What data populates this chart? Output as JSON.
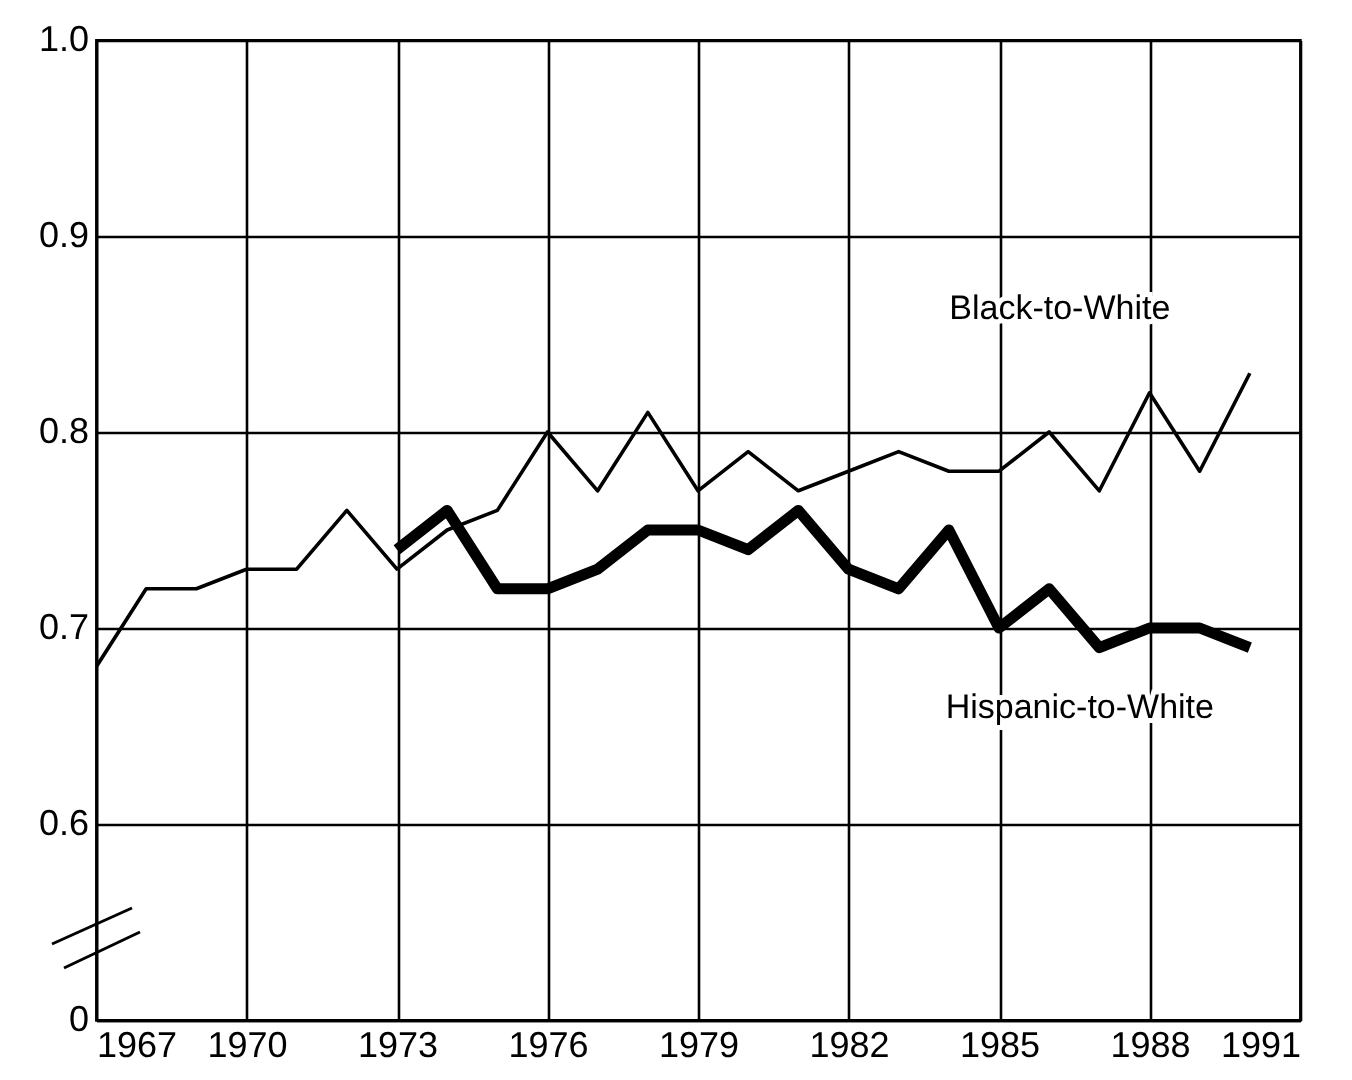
{
  "chart_data": {
    "type": "line",
    "x": [
      1967,
      1968,
      1969,
      1970,
      1971,
      1972,
      1973,
      1974,
      1975,
      1976,
      1977,
      1978,
      1979,
      1980,
      1981,
      1982,
      1983,
      1984,
      1985,
      1986,
      1987,
      1988,
      1989,
      1990
    ],
    "series": [
      {
        "name": "Black-to-White",
        "color": "#000000",
        "line_style": "solid",
        "values": [
          0.68,
          0.72,
          0.72,
          0.73,
          0.73,
          0.76,
          0.73,
          0.75,
          0.76,
          0.8,
          0.77,
          0.81,
          0.77,
          0.79,
          0.77,
          0.78,
          0.79,
          0.78,
          0.78,
          0.8,
          0.77,
          0.82,
          0.78,
          0.83
        ]
      },
      {
        "name": "Hispanic-to-White",
        "color": "#000000",
        "line_style": "solid",
        "values": [
          null,
          null,
          null,
          null,
          null,
          null,
          0.74,
          0.76,
          0.72,
          0.72,
          0.73,
          0.75,
          0.75,
          0.74,
          0.76,
          0.73,
          0.72,
          0.75,
          0.7,
          0.72,
          0.69,
          0.7,
          0.7,
          0.69
        ]
      }
    ],
    "xlim": [
      1967,
      1991
    ],
    "xticks": [
      1967,
      1970,
      1973,
      1976,
      1979,
      1982,
      1985,
      1988,
      1991
    ],
    "ylim": [
      0.5,
      1.0
    ],
    "yticks": [
      {
        "value": 0.5,
        "label": "0"
      },
      0.6,
      0.7,
      0.8,
      0.9,
      {
        "value": 1.0,
        "label": "1.0"
      }
    ],
    "grid": true,
    "marker": "none"
  }
}
